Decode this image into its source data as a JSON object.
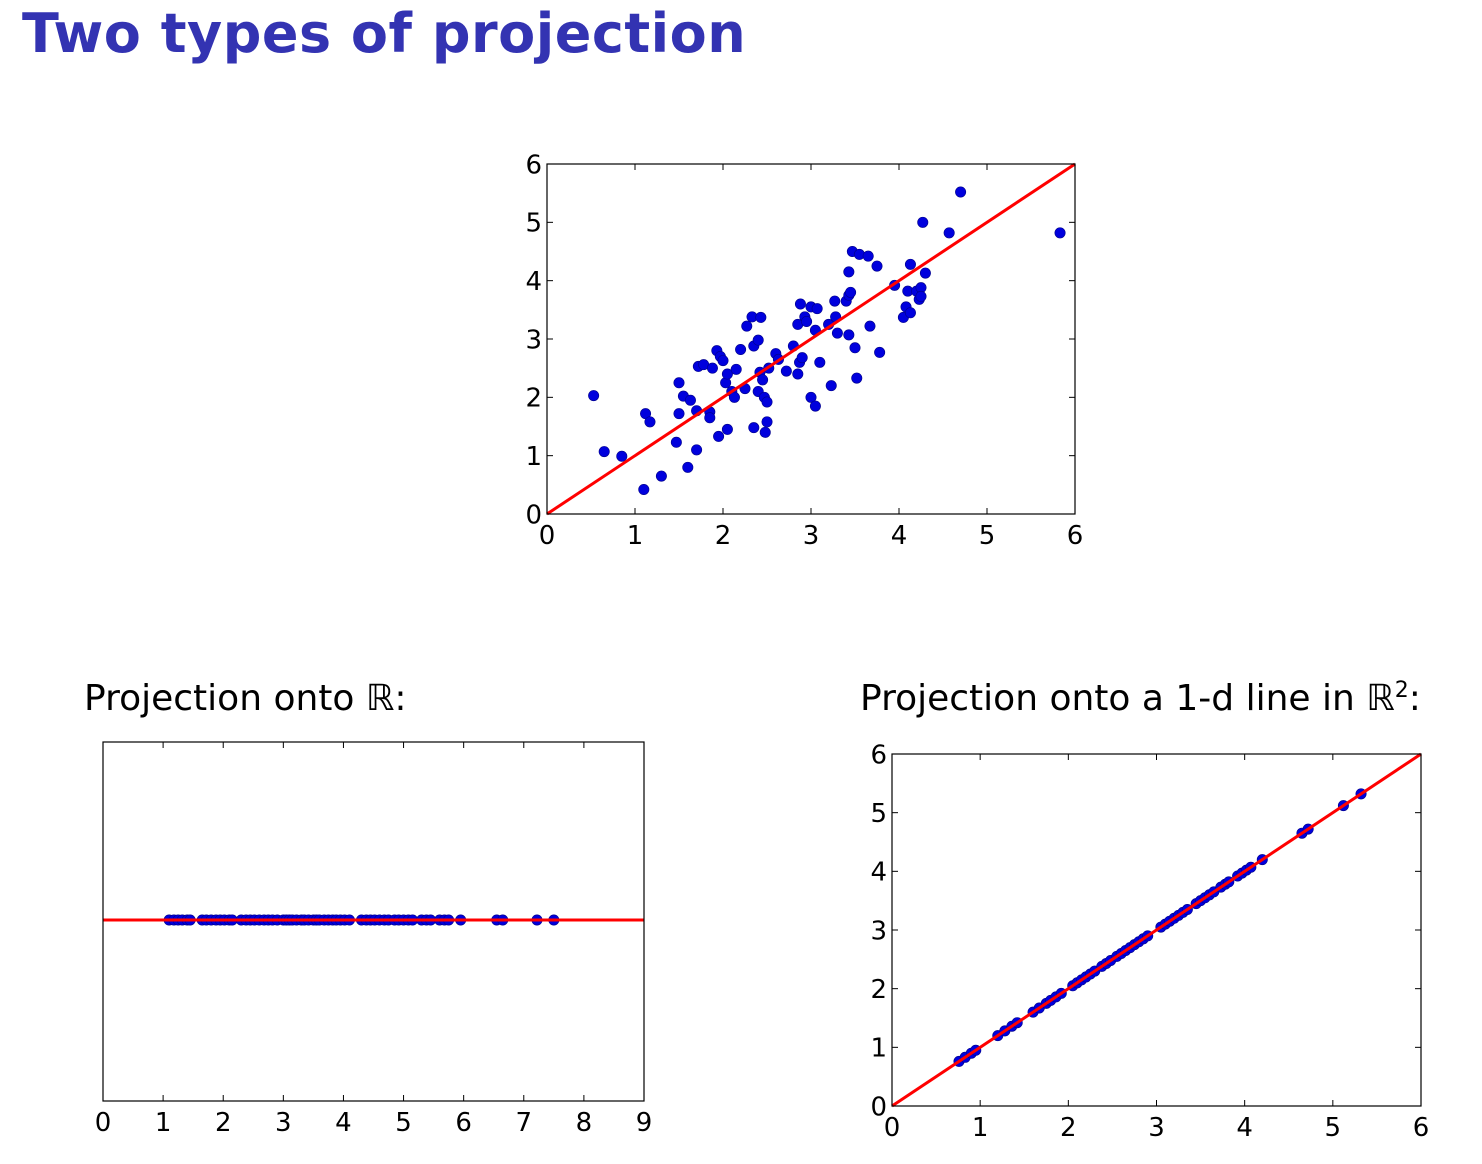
{
  "title": "Two types of projection",
  "captions": {
    "left": "Projection onto ℝ:",
    "right_prefix": "Projection onto a 1-d line in ℝ",
    "right_superscript": "2",
    "right_suffix": ":"
  },
  "colors": {
    "points": "#0000dd",
    "line": "#ff0000",
    "title": "#3333b2"
  },
  "chart_data": [
    {
      "type": "scatter",
      "title": "",
      "xlabel": "",
      "ylabel": "",
      "xlim": [
        0,
        6
      ],
      "ylim": [
        0,
        6
      ],
      "xticks": [
        "0",
        "1",
        "2",
        "3",
        "4",
        "5",
        "6"
      ],
      "yticks": [
        "0",
        "1",
        "2",
        "3",
        "4",
        "5",
        "6"
      ],
      "grid": false,
      "line": {
        "x": [
          0,
          6
        ],
        "y": [
          0,
          6
        ]
      },
      "points": [
        [
          0.53,
          2.03
        ],
        [
          0.65,
          1.07
        ],
        [
          0.85,
          0.99
        ],
        [
          1.1,
          0.42
        ],
        [
          1.12,
          1.72
        ],
        [
          1.17,
          1.58
        ],
        [
          1.3,
          0.65
        ],
        [
          1.47,
          1.23
        ],
        [
          1.5,
          2.25
        ],
        [
          1.5,
          1.72
        ],
        [
          1.55,
          2.02
        ],
        [
          1.6,
          0.8
        ],
        [
          1.63,
          1.95
        ],
        [
          1.7,
          1.77
        ],
        [
          1.7,
          1.1
        ],
        [
          1.72,
          2.53
        ],
        [
          1.78,
          2.56
        ],
        [
          1.85,
          1.75
        ],
        [
          1.85,
          1.65
        ],
        [
          1.88,
          2.5
        ],
        [
          1.93,
          2.8
        ],
        [
          1.95,
          1.33
        ],
        [
          1.97,
          2.7
        ],
        [
          2.0,
          2.63
        ],
        [
          2.03,
          2.25
        ],
        [
          2.05,
          2.4
        ],
        [
          2.05,
          1.45
        ],
        [
          2.1,
          2.1
        ],
        [
          2.13,
          2.0
        ],
        [
          2.15,
          2.48
        ],
        [
          2.2,
          2.82
        ],
        [
          2.25,
          2.15
        ],
        [
          2.27,
          3.22
        ],
        [
          2.33,
          3.38
        ],
        [
          2.35,
          2.88
        ],
        [
          2.35,
          1.48
        ],
        [
          2.4,
          2.1
        ],
        [
          2.4,
          2.98
        ],
        [
          2.42,
          2.43
        ],
        [
          2.43,
          3.37
        ],
        [
          2.45,
          2.3
        ],
        [
          2.47,
          2.0
        ],
        [
          2.48,
          1.4
        ],
        [
          2.5,
          1.58
        ],
        [
          2.5,
          1.92
        ],
        [
          2.52,
          2.5
        ],
        [
          2.6,
          2.75
        ],
        [
          2.63,
          2.65
        ],
        [
          2.72,
          2.45
        ],
        [
          2.8,
          2.88
        ],
        [
          2.85,
          2.4
        ],
        [
          2.85,
          3.25
        ],
        [
          2.87,
          2.6
        ],
        [
          2.88,
          3.6
        ],
        [
          2.9,
          2.68
        ],
        [
          2.93,
          3.38
        ],
        [
          2.95,
          3.3
        ],
        [
          3.0,
          3.55
        ],
        [
          3.0,
          2.0
        ],
        [
          3.05,
          1.85
        ],
        [
          3.05,
          3.15
        ],
        [
          3.07,
          3.52
        ],
        [
          3.1,
          2.6
        ],
        [
          3.2,
          3.25
        ],
        [
          3.23,
          2.2
        ],
        [
          3.27,
          3.65
        ],
        [
          3.28,
          3.38
        ],
        [
          3.3,
          3.1
        ],
        [
          3.4,
          3.65
        ],
        [
          3.43,
          3.07
        ],
        [
          3.43,
          3.75
        ],
        [
          3.43,
          4.15
        ],
        [
          3.45,
          3.8
        ],
        [
          3.47,
          4.5
        ],
        [
          3.5,
          2.85
        ],
        [
          3.52,
          2.33
        ],
        [
          3.55,
          4.45
        ],
        [
          3.65,
          4.42
        ],
        [
          3.67,
          3.22
        ],
        [
          3.75,
          4.25
        ],
        [
          3.78,
          2.77
        ],
        [
          3.95,
          3.92
        ],
        [
          4.05,
          3.37
        ],
        [
          4.08,
          3.55
        ],
        [
          4.1,
          3.82
        ],
        [
          4.13,
          3.45
        ],
        [
          4.13,
          4.28
        ],
        [
          4.2,
          3.82
        ],
        [
          4.23,
          3.68
        ],
        [
          4.25,
          3.88
        ],
        [
          4.25,
          3.73
        ],
        [
          4.27,
          5.0
        ],
        [
          4.3,
          4.13
        ],
        [
          4.57,
          4.82
        ],
        [
          4.7,
          5.52
        ],
        [
          5.83,
          4.82
        ]
      ]
    },
    {
      "type": "scatter",
      "title": "",
      "xlabel": "",
      "ylabel": "",
      "xlim": [
        0,
        9
      ],
      "xticks": [
        "0",
        "1",
        "2",
        "3",
        "4",
        "5",
        "6",
        "7",
        "8",
        "9"
      ],
      "yticks": [],
      "grid": false,
      "line": {
        "y": 0
      },
      "points_x": [
        1.1,
        1.18,
        1.25,
        1.32,
        1.4,
        1.45,
        1.65,
        1.72,
        1.8,
        1.88,
        1.95,
        2.02,
        2.1,
        2.15,
        2.3,
        2.38,
        2.45,
        2.52,
        2.6,
        2.68,
        2.75,
        2.82,
        2.9,
        3.0,
        3.05,
        3.1,
        3.15,
        3.22,
        3.3,
        3.35,
        3.42,
        3.5,
        3.55,
        3.6,
        3.68,
        3.75,
        3.82,
        3.88,
        3.95,
        4.02,
        4.1,
        4.3,
        4.38,
        4.45,
        4.52,
        4.6,
        4.68,
        4.75,
        4.85,
        4.92,
        5.0,
        5.08,
        5.15,
        5.3,
        5.38,
        5.45,
        5.6,
        5.68,
        5.75,
        5.95,
        6.55,
        6.65,
        7.22,
        7.5
      ]
    },
    {
      "type": "scatter",
      "title": "",
      "xlabel": "",
      "ylabel": "",
      "xlim": [
        0,
        6
      ],
      "ylim": [
        0,
        6
      ],
      "xticks": [
        "0",
        "1",
        "2",
        "3",
        "4",
        "5",
        "6"
      ],
      "yticks": [
        "0",
        "1",
        "2",
        "3",
        "4",
        "5",
        "6"
      ],
      "grid": false,
      "line": {
        "x": [
          0,
          6
        ],
        "y": [
          0,
          6
        ]
      },
      "points_t": [
        0.76,
        0.83,
        0.9,
        0.95,
        1.2,
        1.28,
        1.36,
        1.42,
        1.6,
        1.67,
        1.75,
        1.8,
        1.86,
        1.92,
        2.05,
        2.1,
        2.15,
        2.2,
        2.25,
        2.3,
        2.38,
        2.43,
        2.48,
        2.55,
        2.6,
        2.65,
        2.7,
        2.75,
        2.8,
        2.85,
        2.9,
        3.05,
        3.1,
        3.15,
        3.2,
        3.25,
        3.3,
        3.35,
        3.45,
        3.5,
        3.55,
        3.6,
        3.65,
        3.73,
        3.78,
        3.82,
        3.92,
        3.97,
        4.02,
        4.07,
        4.2,
        4.65,
        4.72,
        5.12,
        5.32
      ]
    }
  ]
}
